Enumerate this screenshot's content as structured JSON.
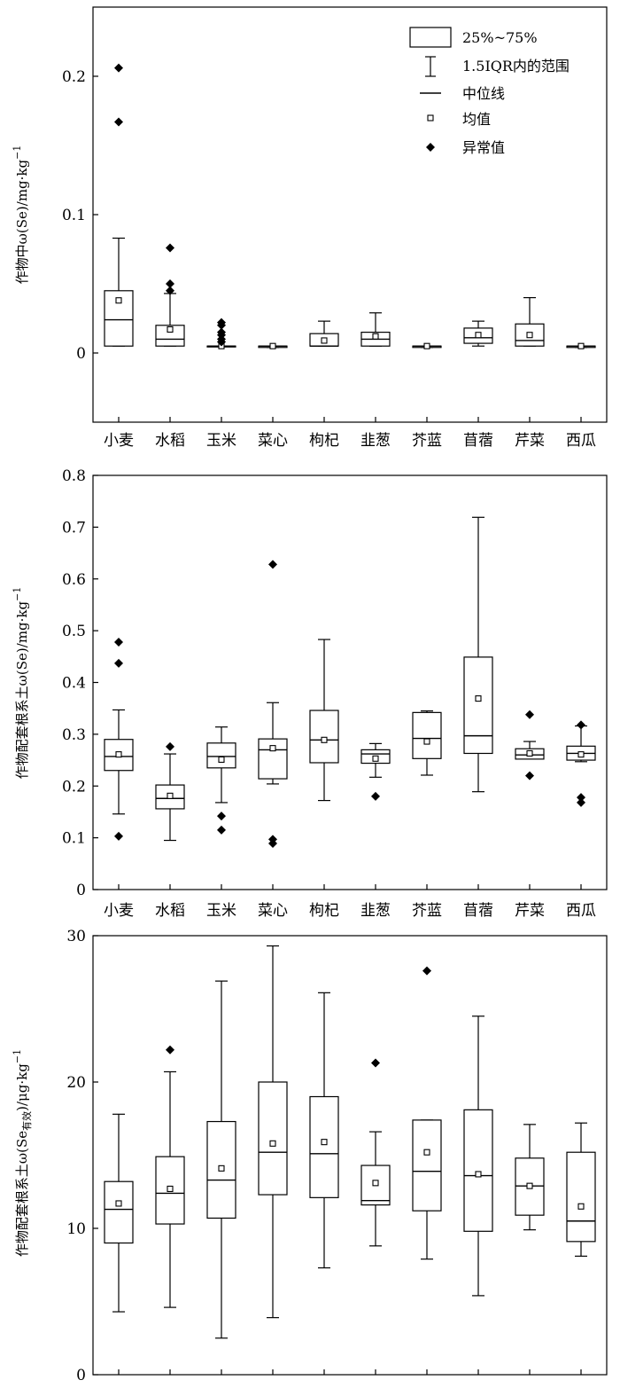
{
  "categories": [
    "小麦",
    "水稻",
    "玉米",
    "菜心",
    "枸杞",
    "韭葱",
    "芥蓝",
    "苜蓿",
    "芹菜",
    "西瓜"
  ],
  "legend": {
    "box": "25%~75%",
    "whisker": "1.5IQR内的范围",
    "median": "中位线",
    "mean": "均值",
    "outlier": "异常值"
  },
  "chart_data": [
    {
      "type": "box",
      "ylabel_main": "作物中ω(Se)/mg·kg",
      "ylabel_sup": "−1",
      "ylim": [
        -0.05,
        0.25
      ],
      "yticks": [
        0,
        0.1,
        0.2
      ],
      "yticklabels": [
        "0",
        "0.1",
        "0.2"
      ],
      "legend_position": "top-right",
      "boxes": [
        {
          "q1": 0.005,
          "median": 0.024,
          "q3": 0.045,
          "low": 0.005,
          "high": 0.083,
          "mean": 0.038,
          "outliers": [
            0.167,
            0.206
          ]
        },
        {
          "q1": 0.005,
          "median": 0.01,
          "q3": 0.02,
          "low": 0.005,
          "high": 0.043,
          "mean": 0.017,
          "outliers": [
            0.045,
            0.05,
            0.076
          ]
        },
        {
          "q1": 0.005,
          "median": 0.005,
          "q3": 0.005,
          "low": 0.005,
          "high": 0.005,
          "mean": 0.005,
          "outliers": [
            0.008,
            0.01,
            0.013,
            0.015,
            0.02,
            0.022
          ]
        },
        {
          "q1": 0.004,
          "median": 0.005,
          "q3": 0.005,
          "low": 0.004,
          "high": 0.005,
          "mean": 0.005,
          "outliers": []
        },
        {
          "q1": 0.005,
          "median": 0.005,
          "q3": 0.014,
          "low": 0.005,
          "high": 0.023,
          "mean": 0.009,
          "outliers": []
        },
        {
          "q1": 0.005,
          "median": 0.01,
          "q3": 0.015,
          "low": 0.005,
          "high": 0.029,
          "mean": 0.012,
          "outliers": []
        },
        {
          "q1": 0.004,
          "median": 0.005,
          "q3": 0.005,
          "low": 0.004,
          "high": 0.005,
          "mean": 0.005,
          "outliers": []
        },
        {
          "q1": 0.007,
          "median": 0.011,
          "q3": 0.018,
          "low": 0.005,
          "high": 0.023,
          "mean": 0.013,
          "outliers": []
        },
        {
          "q1": 0.005,
          "median": 0.009,
          "q3": 0.021,
          "low": 0.005,
          "high": 0.04,
          "mean": 0.013,
          "outliers": []
        },
        {
          "q1": 0.004,
          "median": 0.005,
          "q3": 0.005,
          "low": 0.004,
          "high": 0.005,
          "mean": 0.005,
          "outliers": []
        }
      ]
    },
    {
      "type": "box",
      "ylabel_main": "作物配套根系土ω(Se)/mg·kg",
      "ylabel_sup": "−1",
      "ylim": [
        0,
        0.8
      ],
      "yticks": [
        0,
        0.1,
        0.2,
        0.3,
        0.4,
        0.5,
        0.6,
        0.7,
        0.8
      ],
      "yticklabels": [
        "0",
        "0.1",
        "0.2",
        "0.3",
        "0.4",
        "0.5",
        "0.6",
        "0.7",
        "0.8"
      ],
      "boxes": [
        {
          "q1": 0.23,
          "median": 0.257,
          "q3": 0.29,
          "low": 0.146,
          "high": 0.347,
          "mean": 0.261,
          "outliers": [
            0.103,
            0.437,
            0.478
          ]
        },
        {
          "q1": 0.156,
          "median": 0.176,
          "q3": 0.202,
          "low": 0.095,
          "high": 0.262,
          "mean": 0.181,
          "outliers": [
            0.276
          ]
        },
        {
          "q1": 0.235,
          "median": 0.257,
          "q3": 0.283,
          "low": 0.168,
          "high": 0.314,
          "mean": 0.251,
          "outliers": [
            0.115,
            0.142
          ]
        },
        {
          "q1": 0.214,
          "median": 0.27,
          "q3": 0.291,
          "low": 0.204,
          "high": 0.361,
          "mean": 0.273,
          "outliers": [
            0.089,
            0.097,
            0.628
          ]
        },
        {
          "q1": 0.245,
          "median": 0.289,
          "q3": 0.346,
          "low": 0.172,
          "high": 0.483,
          "mean": 0.289,
          "outliers": []
        },
        {
          "q1": 0.244,
          "median": 0.262,
          "q3": 0.27,
          "low": 0.217,
          "high": 0.282,
          "mean": 0.253,
          "outliers": [
            0.18
          ]
        },
        {
          "q1": 0.253,
          "median": 0.292,
          "q3": 0.342,
          "low": 0.221,
          "high": 0.345,
          "mean": 0.286,
          "outliers": []
        },
        {
          "q1": 0.263,
          "median": 0.297,
          "q3": 0.449,
          "low": 0.189,
          "high": 0.719,
          "mean": 0.369,
          "outliers": []
        },
        {
          "q1": 0.252,
          "median": 0.26,
          "q3": 0.272,
          "low": 0.252,
          "high": 0.286,
          "mean": 0.263,
          "outliers": [
            0.22,
            0.338
          ]
        },
        {
          "q1": 0.25,
          "median": 0.263,
          "q3": 0.277,
          "low": 0.247,
          "high": 0.316,
          "mean": 0.261,
          "outliers": [
            0.168,
            0.178,
            0.318
          ]
        }
      ]
    },
    {
      "type": "box",
      "ylabel_main": "作物配套根系土ω(Se",
      "ylabel_sub": "有效",
      "ylabel_tail": ")/μg·kg",
      "ylabel_sup": "−1",
      "ylim": [
        0,
        30
      ],
      "yticks": [
        0,
        10,
        20,
        30
      ],
      "yticklabels": [
        "0",
        "10",
        "20",
        "30"
      ],
      "boxes": [
        {
          "q1": 9.0,
          "median": 11.3,
          "q3": 13.2,
          "low": 4.3,
          "high": 17.8,
          "mean": 11.7,
          "outliers": []
        },
        {
          "q1": 10.3,
          "median": 12.4,
          "q3": 14.9,
          "low": 4.6,
          "high": 20.7,
          "mean": 12.7,
          "outliers": [
            22.2
          ]
        },
        {
          "q1": 10.7,
          "median": 13.3,
          "q3": 17.3,
          "low": 2.5,
          "high": 26.9,
          "mean": 14.1,
          "outliers": []
        },
        {
          "q1": 12.3,
          "median": 15.2,
          "q3": 20.0,
          "low": 3.9,
          "high": 29.3,
          "mean": 15.8,
          "outliers": []
        },
        {
          "q1": 12.1,
          "median": 15.1,
          "q3": 19.0,
          "low": 7.3,
          "high": 26.1,
          "mean": 15.9,
          "outliers": []
        },
        {
          "q1": 11.6,
          "median": 11.9,
          "q3": 14.3,
          "low": 8.8,
          "high": 16.6,
          "mean": 13.1,
          "outliers": [
            21.3
          ]
        },
        {
          "q1": 11.2,
          "median": 13.9,
          "q3": 17.4,
          "low": 7.9,
          "high": 17.4,
          "mean": 15.2,
          "outliers": [
            27.6
          ]
        },
        {
          "q1": 9.8,
          "median": 13.6,
          "q3": 18.1,
          "low": 5.4,
          "high": 24.5,
          "mean": 13.7,
          "outliers": []
        },
        {
          "q1": 10.9,
          "median": 12.9,
          "q3": 14.8,
          "low": 9.9,
          "high": 17.1,
          "mean": 12.9,
          "outliers": []
        },
        {
          "q1": 9.1,
          "median": 10.5,
          "q3": 15.2,
          "low": 8.1,
          "high": 17.2,
          "mean": 11.5,
          "outliers": []
        }
      ]
    }
  ]
}
